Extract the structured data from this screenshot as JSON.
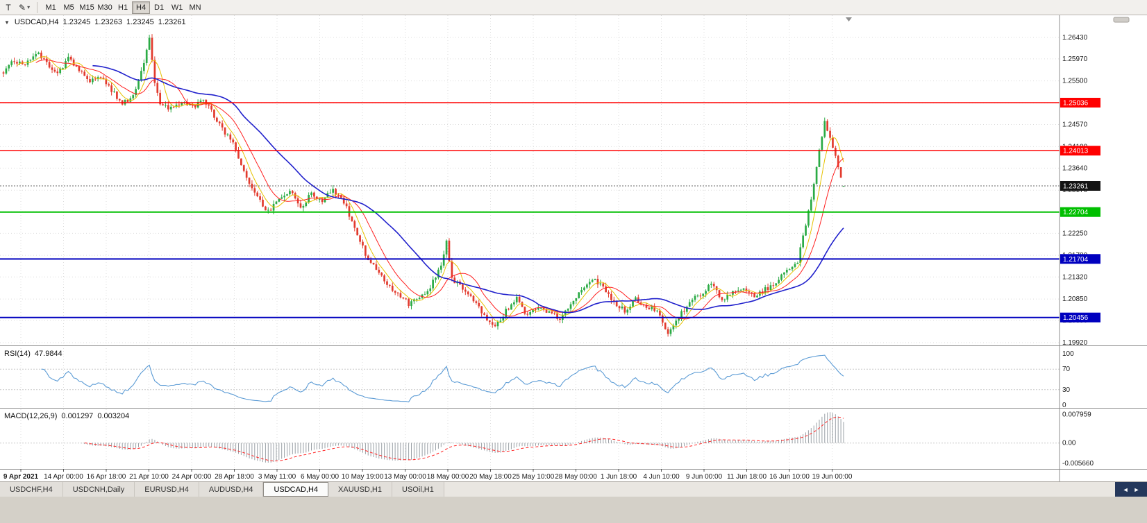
{
  "toolbar": {
    "tools": [
      {
        "glyph": "T"
      },
      {
        "glyph": "✎"
      }
    ],
    "dropdown_glyph": "▾",
    "timeframes": [
      "M1",
      "M5",
      "M15",
      "M30",
      "H1",
      "H4",
      "D1",
      "W1",
      "MN"
    ],
    "active_timeframe": "H4"
  },
  "header": {
    "collapse_glyph": "▼",
    "symbol": "USDCAD,H4",
    "open": "1.23245",
    "high": "1.23263",
    "low": "1.23245",
    "close": "1.23261"
  },
  "tabs": {
    "items": [
      {
        "label": "USDCHF,H4"
      },
      {
        "label": "USDCNH,Daily"
      },
      {
        "label": "EURUSD,H4"
      },
      {
        "label": "AUDUSD,H4"
      },
      {
        "label": "USDCAD,H4"
      },
      {
        "label": "XAUUSD,H1"
      },
      {
        "label": "USOil,H1"
      }
    ],
    "active": "USDCAD,H4",
    "scroll_left_glyph": "◄",
    "scroll_right_glyph": "►"
  },
  "chart_data": {
    "type": "candlestick",
    "symbol": "USDCAD",
    "timeframe": "H4",
    "title": "USDCAD,H4",
    "bars": 312,
    "price_range": [
      1.1986,
      1.269
    ],
    "noise": 0.0011,
    "wick": 0.0008,
    "up_color": "#2bab45",
    "down_color": "#e23b2e",
    "last_bar": {
      "open": 1.23245,
      "high": 1.23263,
      "low": 1.23245,
      "close": 1.23261
    },
    "close_path_anchors": [
      [
        0,
        1.257
      ],
      [
        4,
        1.2592
      ],
      [
        8,
        1.2585
      ],
      [
        12,
        1.261
      ],
      [
        16,
        1.259
      ],
      [
        20,
        1.2565
      ],
      [
        24,
        1.26
      ],
      [
        28,
        1.257
      ],
      [
        32,
        1.2552
      ],
      [
        36,
        1.256
      ],
      [
        40,
        1.253
      ],
      [
        44,
        1.25
      ],
      [
        48,
        1.252
      ],
      [
        52,
        1.259
      ],
      [
        54,
        1.2645
      ],
      [
        56,
        1.255
      ],
      [
        58,
        1.25
      ],
      [
        62,
        1.249
      ],
      [
        66,
        1.2505
      ],
      [
        70,
        1.2495
      ],
      [
        74,
        1.251
      ],
      [
        78,
        1.2475
      ],
      [
        82,
        1.244
      ],
      [
        86,
        1.2405
      ],
      [
        90,
        1.234
      ],
      [
        94,
        1.23
      ],
      [
        98,
        1.227
      ],
      [
        102,
        1.23
      ],
      [
        106,
        1.2315
      ],
      [
        110,
        1.228
      ],
      [
        114,
        1.231
      ],
      [
        118,
        1.2295
      ],
      [
        122,
        1.232
      ],
      [
        126,
        1.229
      ],
      [
        130,
        1.224
      ],
      [
        134,
        1.218
      ],
      [
        138,
        1.215
      ],
      [
        142,
        1.212
      ],
      [
        146,
        1.2095
      ],
      [
        150,
        1.2075
      ],
      [
        154,
        1.2085
      ],
      [
        158,
        1.211
      ],
      [
        162,
        1.216
      ],
      [
        164,
        1.2205
      ],
      [
        166,
        1.213
      ],
      [
        170,
        1.2105
      ],
      [
        174,
        1.208
      ],
      [
        178,
        1.205
      ],
      [
        182,
        1.2025
      ],
      [
        186,
        1.206
      ],
      [
        190,
        1.2085
      ],
      [
        194,
        1.205
      ],
      [
        198,
        1.207
      ],
      [
        202,
        1.2055
      ],
      [
        206,
        1.2045
      ],
      [
        210,
        1.2075
      ],
      [
        214,
        1.2105
      ],
      [
        218,
        1.213
      ],
      [
        222,
        1.211
      ],
      [
        226,
        1.208
      ],
      [
        230,
        1.206
      ],
      [
        234,
        1.2085
      ],
      [
        238,
        1.207
      ],
      [
        242,
        1.206
      ],
      [
        246,
        1.201
      ],
      [
        250,
        1.2045
      ],
      [
        254,
        1.208
      ],
      [
        258,
        1.2095
      ],
      [
        262,
        1.2115
      ],
      [
        266,
        1.2085
      ],
      [
        270,
        1.21
      ],
      [
        274,
        1.211
      ],
      [
        278,
        1.209
      ],
      [
        282,
        1.2105
      ],
      [
        286,
        1.212
      ],
      [
        290,
        1.2145
      ],
      [
        294,
        1.2165
      ],
      [
        297,
        1.224
      ],
      [
        300,
        1.233
      ],
      [
        302,
        1.24
      ],
      [
        304,
        1.247
      ],
      [
        306,
        1.2425
      ],
      [
        308,
        1.2395
      ],
      [
        310,
        1.234
      ],
      [
        311,
        1.2326
      ]
    ],
    "moving_averages": [
      {
        "period": 6,
        "color": "#e6c200",
        "width": 1
      },
      {
        "period": 13,
        "color": "#ff2020",
        "width": 1
      },
      {
        "period": 34,
        "color": "#2020cc",
        "width": 1.6
      }
    ],
    "levels": [
      {
        "price": 1.25036,
        "label": "1.25036",
        "color": "#ff0000",
        "width": 1.5
      },
      {
        "price": 1.24013,
        "label": "1.24013",
        "color": "#ff0000",
        "width": 1.5
      },
      {
        "price": 1.22704,
        "label": "1.22704",
        "color": "#00bf00",
        "width": 2
      },
      {
        "price": 1.21704,
        "label": "1.21704",
        "color": "#0000bf",
        "width": 2
      },
      {
        "price": 1.20456,
        "label": "1.20456",
        "color": "#0000bf",
        "width": 2
      }
    ],
    "current_price": {
      "price": 1.23261,
      "label": "1.23261",
      "badge_color": "#141414"
    },
    "y_labels": [
      "1.26430",
      "1.25970",
      "1.25500",
      "1.25030",
      "1.24570",
      "1.24100",
      "1.23640",
      "1.23170",
      "1.22710",
      "1.22250",
      "1.21780",
      "1.21320",
      "1.20850",
      "1.20390",
      "1.19920"
    ],
    "x_labels": [
      "9 Apr 2021",
      "14 Apr 00:00",
      "16 Apr 18:00",
      "21 Apr 10:00",
      "24 Apr 00:00",
      "28 Apr 18:00",
      "3 May 11:00",
      "6 May 00:00",
      "10 May 19:00",
      "13 May 00:00",
      "18 May 00:00",
      "20 May 18:00",
      "25 May 10:00",
      "28 May 00:00",
      "1 Jun 18:00",
      "4 Jun 10:00",
      "9 Jun 00:00",
      "11 Jun 18:00",
      "16 Jun 10:00",
      "19 Jun 00:00"
    ],
    "rsi": {
      "label": "RSI(14)",
      "value": "47.9844",
      "period": 14,
      "color": "#5b9bd5",
      "level_lines": [
        70,
        30
      ],
      "axis_labels": [
        {
          "v": 100,
          "t": "100"
        },
        {
          "v": 70,
          "t": "70"
        },
        {
          "v": 30,
          "t": "30"
        },
        {
          "v": 0,
          "t": "0"
        }
      ]
    },
    "macd": {
      "label": "MACD(12,26,9)",
      "main_value": "0.001297",
      "signal_value": "0.003204",
      "fast": 12,
      "slow": 26,
      "signal": 9,
      "range": [
        -0.006,
        0.0082
      ],
      "hist_color": "#9aa0a6",
      "signal_color": "#ff2020",
      "axis_labels": [
        {
          "v": 0.007959,
          "t": "0.007959"
        },
        {
          "v": 0,
          "t": "0.00"
        },
        {
          "v": -0.00566,
          "t": "-0.005660"
        }
      ]
    }
  }
}
